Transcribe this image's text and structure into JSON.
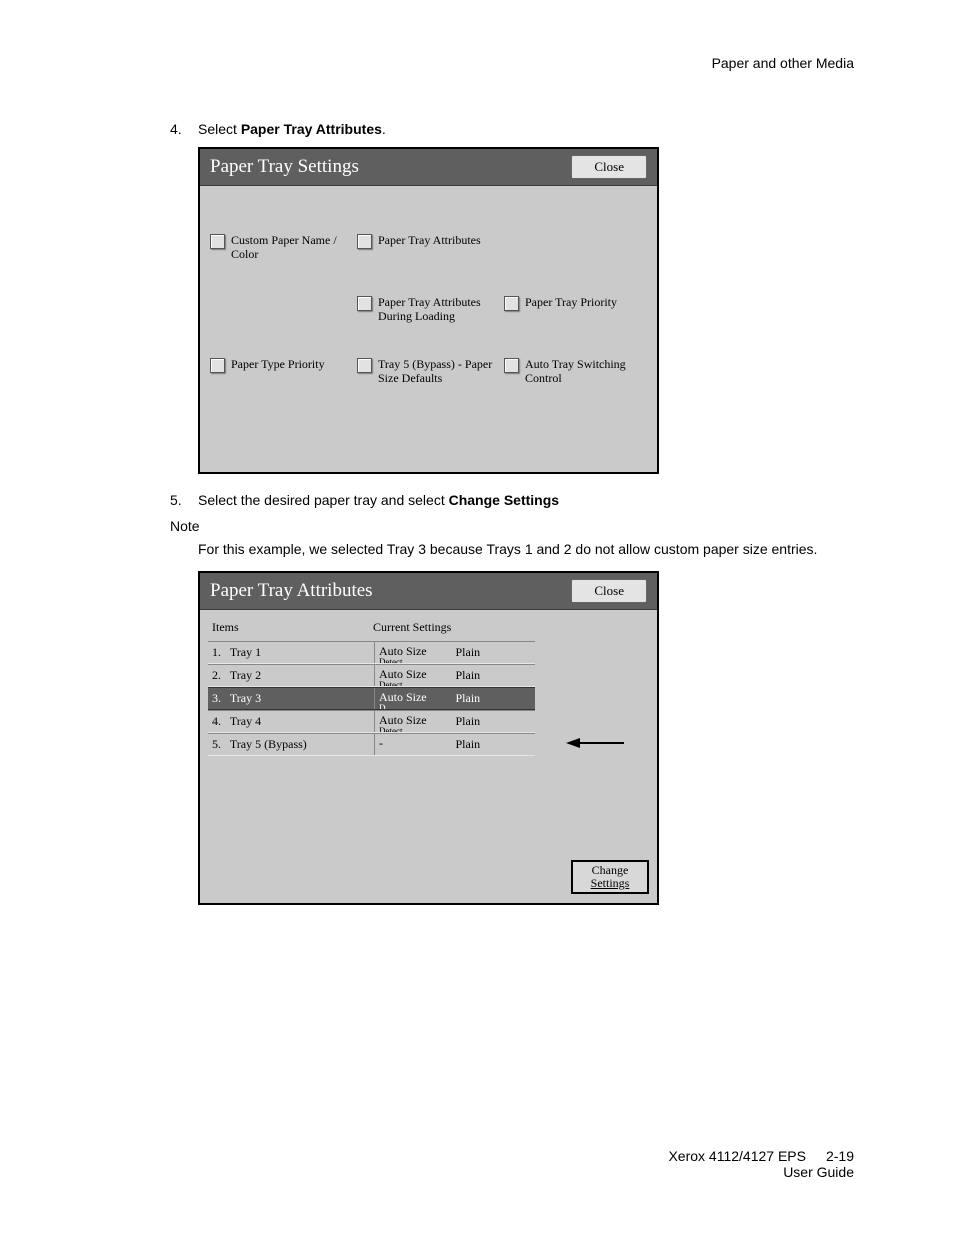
{
  "header": {
    "section": "Paper and other Media"
  },
  "steps": {
    "s4": {
      "num": "4.",
      "pre": "Select ",
      "bold": "Paper Tray Attributes",
      "post": "."
    },
    "s5": {
      "num": "5.",
      "pre": "Select the desired paper tray and select ",
      "bold": "Change Settings",
      "post": ""
    }
  },
  "note": {
    "label": "Note",
    "body": "For this example, we selected Tray 3 because Trays 1 and 2 do not allow custom paper size entries."
  },
  "dialog1": {
    "title": "Paper Tray Settings",
    "close": "Close",
    "options": [
      "Custom Paper Name / Color",
      "Paper Tray Attributes",
      "",
      "",
      "Paper Tray Attributes During Loading",
      "Paper Tray Priority",
      "Paper Type Priority",
      "Tray 5 (Bypass) - Paper Size Defaults",
      "Auto Tray Switching Control"
    ]
  },
  "dialog2": {
    "title": "Paper Tray Attributes",
    "close": "Close",
    "col_items": "Items",
    "col_cs": "Current Settings",
    "rows": [
      {
        "n": "1.",
        "name": "Tray 1",
        "size": "Auto Size",
        "sub": "Detect",
        "type": "Plain",
        "sel": false
      },
      {
        "n": "2.",
        "name": "Tray 2",
        "size": "Auto Size",
        "sub": "Detect",
        "type": "Plain",
        "sel": false
      },
      {
        "n": "3.",
        "name": "Tray 3",
        "size": "Auto Size",
        "sub": "D",
        "type": "Plain",
        "sel": true
      },
      {
        "n": "4.",
        "name": "Tray 4",
        "size": "Auto Size",
        "sub": "Detect",
        "type": "Plain",
        "sel": false
      },
      {
        "n": "5.",
        "name": "Tray 5 (Bypass)",
        "size": "-",
        "sub": "",
        "type": "Plain",
        "sel": false
      }
    ],
    "change_l1": "Change",
    "change_l2": "Settings"
  },
  "footer": {
    "product": "Xerox 4112/4127 EPS",
    "page": "2-19",
    "sub": "User Guide"
  },
  "colors": {
    "dialog_bg": "#cacaca",
    "titlebar_bg": "#5f5f5f",
    "titlebar_fg": "#ffffff",
    "selected_row_bg": "#5f5f5f",
    "arrow_color": "#000000"
  }
}
